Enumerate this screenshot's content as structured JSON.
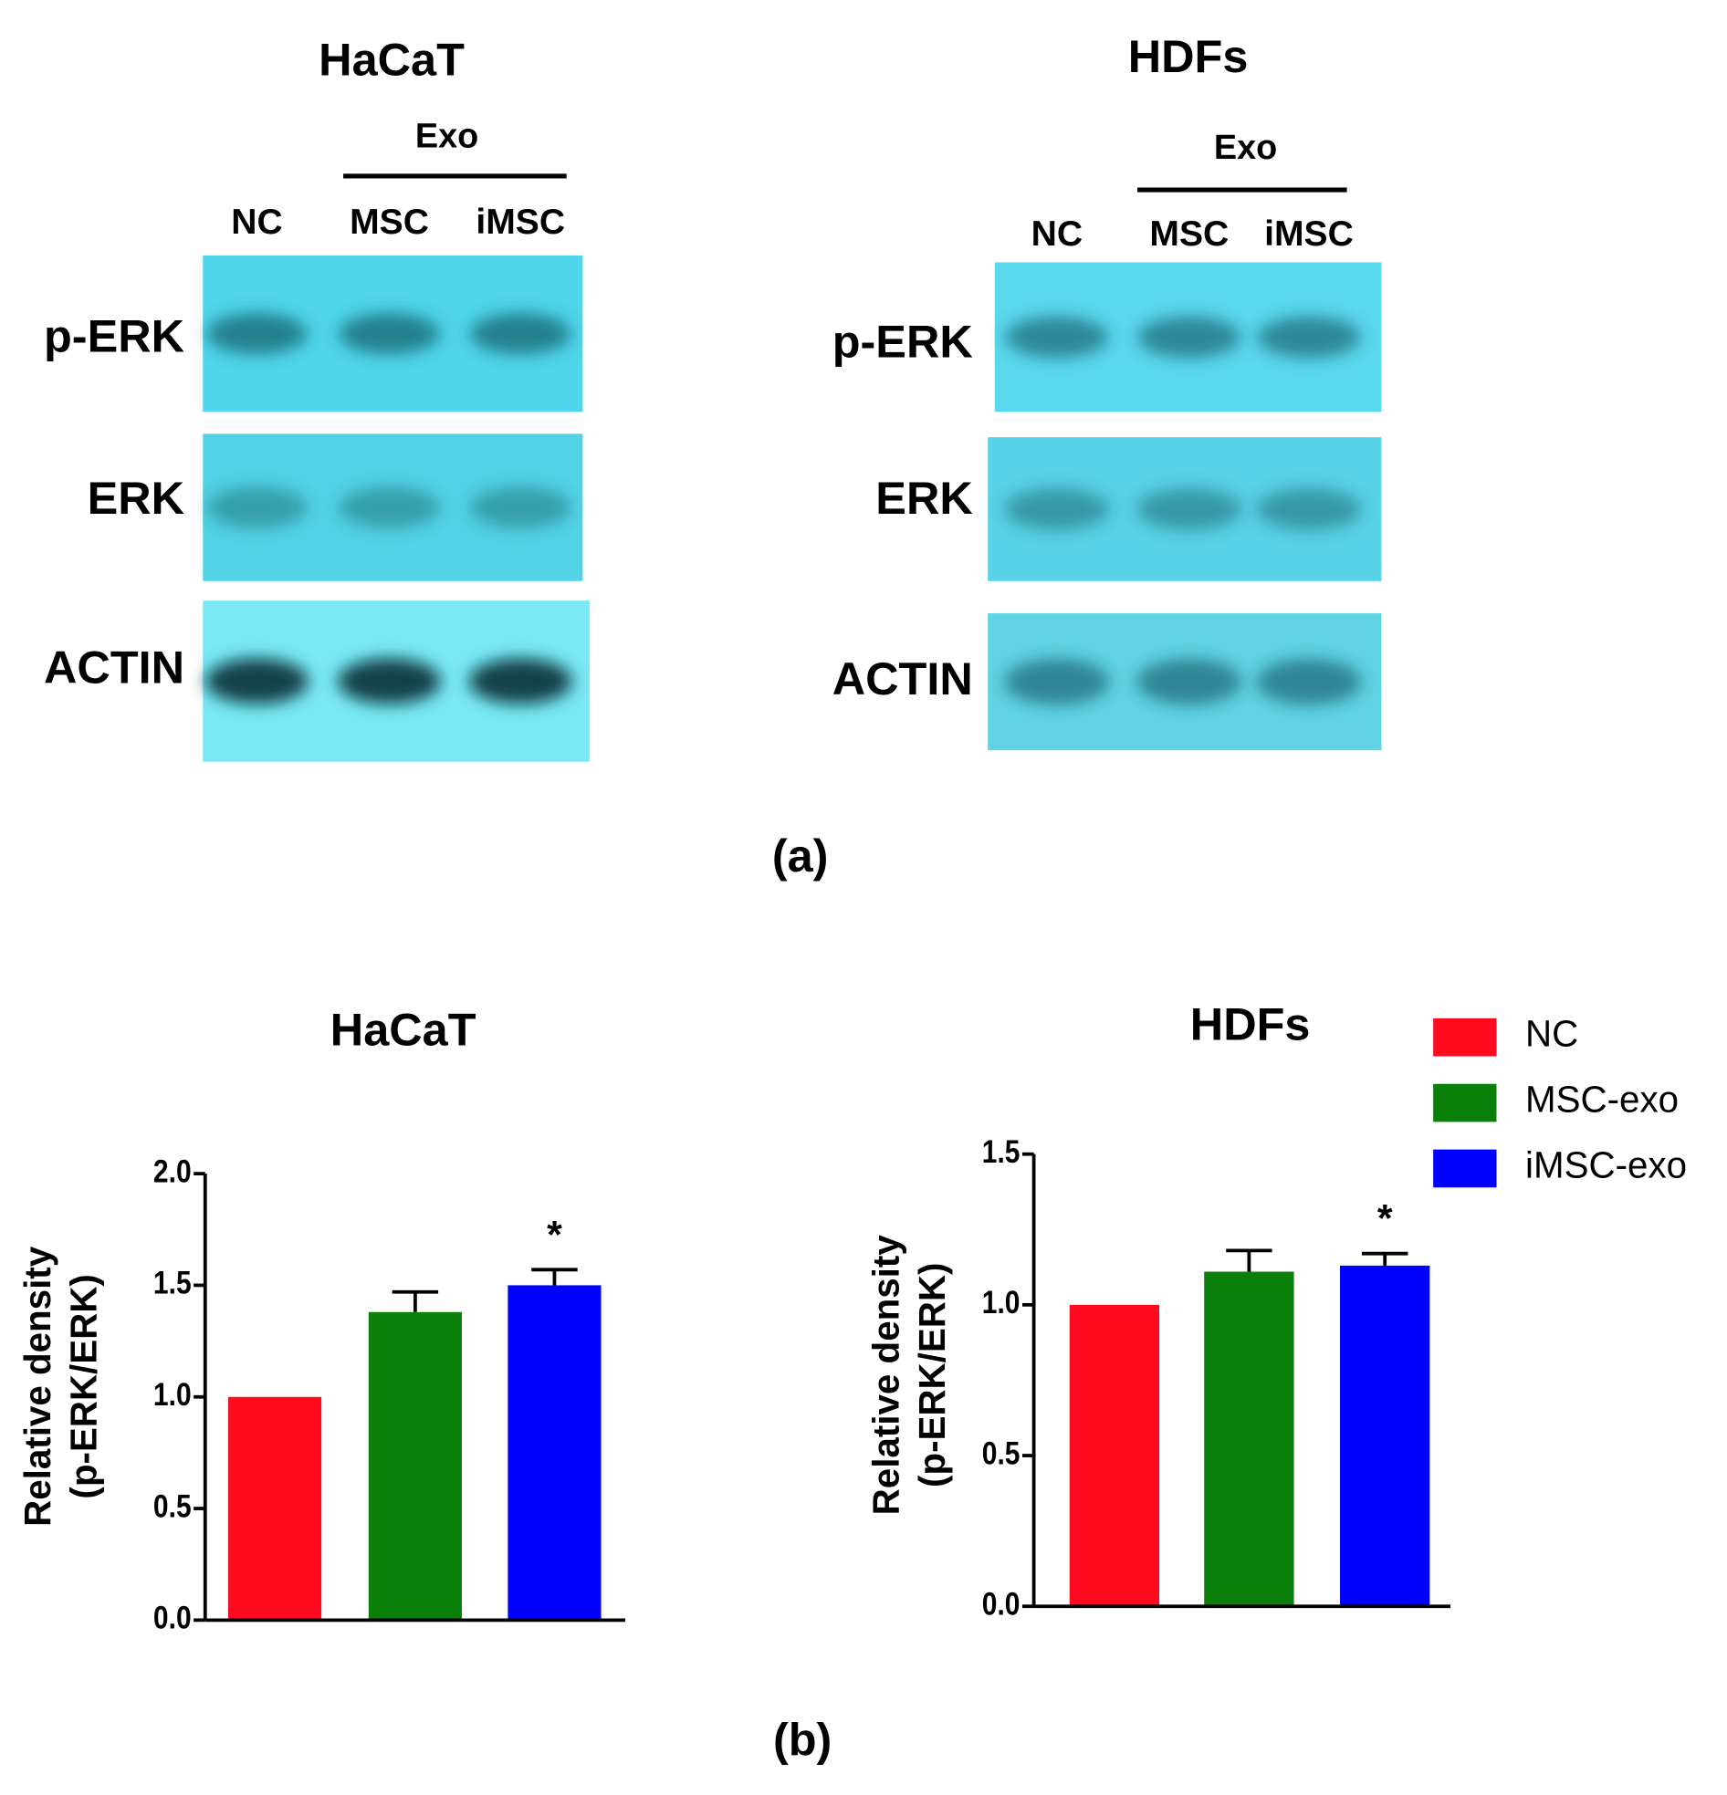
{
  "blots": [
    {
      "title": "HaCaT",
      "group_label": "Exo",
      "lanes": [
        "NC",
        "MSC",
        "iMSC"
      ],
      "rows": [
        "p-ERK",
        "ERK",
        "ACTIN"
      ]
    },
    {
      "title": "HDFs",
      "group_label": "Exo",
      "lanes": [
        "NC",
        "MSC",
        "iMSC"
      ],
      "rows": [
        "p-ERK",
        "ERK",
        "ACTIN"
      ]
    }
  ],
  "panel_labels": [
    "(a)",
    "(b)"
  ],
  "legend": [
    {
      "name": "NC",
      "color": "#ff0a1e"
    },
    {
      "name": "MSC-exo",
      "color": "#0a800a"
    },
    {
      "name": "iMSC-exo",
      "color": "#0000ff"
    }
  ],
  "chart_data": [
    {
      "type": "bar",
      "title": "HaCaT",
      "ylabel": [
        "Relative density",
        "(p-ERK/ERK)"
      ],
      "values": [
        1.0,
        1.38,
        1.5
      ],
      "errors": [
        null,
        0.09,
        0.07
      ],
      "significance": [
        null,
        null,
        "*"
      ],
      "ylim": [
        0,
        2
      ],
      "yticks": [
        {
          "value": 0,
          "label": "0.0"
        },
        0.5,
        {
          "value": 1,
          "label": "1.0"
        },
        1.5,
        {
          "value": 2,
          "label": "2.0"
        }
      ]
    },
    {
      "type": "bar",
      "title": "HDFs",
      "ylabel": [
        "Relative density",
        "(p-ERK/ERK)"
      ],
      "values": [
        1.0,
        1.11,
        1.13
      ],
      "errors": [
        null,
        0.07,
        0.04
      ],
      "significance": [
        null,
        null,
        "*"
      ],
      "ylim": [
        0,
        1.5
      ],
      "yticks": [
        {
          "value": 0,
          "label": "0.0"
        },
        0.5,
        {
          "value": 1,
          "label": "1.0"
        },
        1.5
      ]
    }
  ]
}
